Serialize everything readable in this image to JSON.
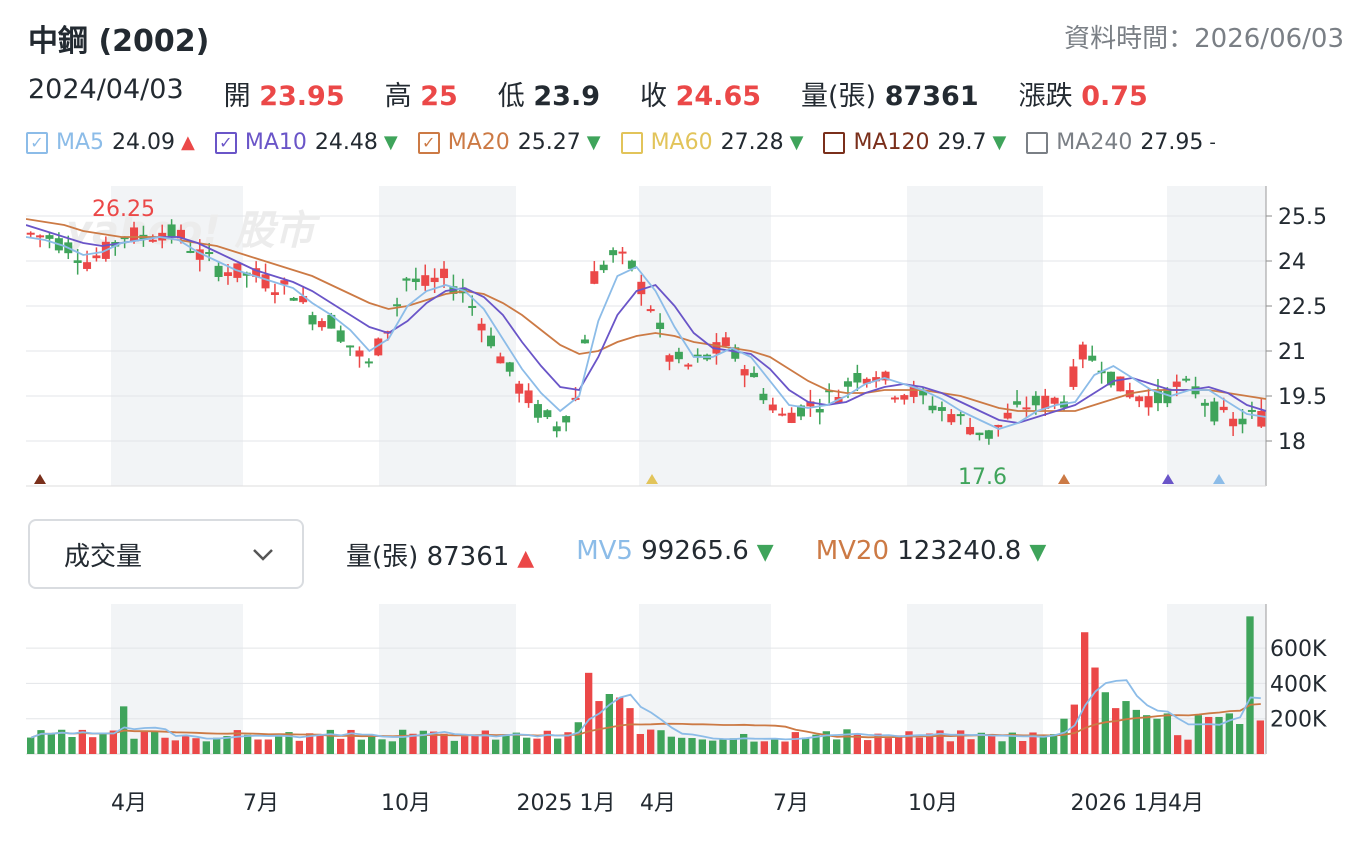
{
  "header": {
    "title": "中鋼 (2002)",
    "data_time": "資料時間：2026/06/03"
  },
  "quote": {
    "date": "2024/04/03",
    "open_label": "開",
    "open": "23.95",
    "high_label": "高",
    "high": "25",
    "low_label": "低",
    "low": "23.9",
    "close_label": "收",
    "close": "24.65",
    "volume_label": "量(張)",
    "volume": "87361",
    "change_label": "漲跌",
    "change": "0.75"
  },
  "ma_legend": [
    {
      "label": "MA5",
      "value": "24.09",
      "trend": "up",
      "color": "#8cbce8",
      "checked": true
    },
    {
      "label": "MA10",
      "value": "24.48",
      "trend": "down",
      "color": "#6a55c8",
      "checked": true
    },
    {
      "label": "MA20",
      "value": "25.27",
      "trend": "down",
      "color": "#cc7a45",
      "checked": true
    },
    {
      "label": "MA60",
      "value": "27.28",
      "trend": "down",
      "color": "#e2c45a",
      "checked": false
    },
    {
      "label": "MA120",
      "value": "29.7",
      "trend": "down",
      "color": "#7a2f1b",
      "checked": false
    },
    {
      "label": "MA240",
      "value": "27.95",
      "trend": "flat",
      "color": "#7a7f85",
      "checked": false
    }
  ],
  "indicator_select": {
    "value": "成交量"
  },
  "volume_legend": {
    "vol_label": "量(張)",
    "vol_value": "87361",
    "mv5_label": "MV5",
    "mv5_value": "99265.6",
    "mv20_label": "MV20",
    "mv20_value": "123240.8"
  },
  "colors": {
    "up": "#eb4848",
    "down": "#3fa45b",
    "ma5": "#8cbce8",
    "ma10": "#6a55c8",
    "ma20": "#cc7a45"
  },
  "chart_data": {
    "type": "candlestick",
    "price_axis": {
      "ticks": [
        "25.5",
        "24",
        "22.5",
        "21",
        "19.5",
        "18"
      ],
      "range": [
        16.5,
        26.5
      ]
    },
    "volume_axis": {
      "ticks": [
        "600K",
        "400K",
        "200K"
      ],
      "range": [
        0,
        850000
      ]
    },
    "x_labels": [
      "4月",
      "7月",
      "10月",
      "2025 1月",
      "4月",
      "7月",
      "10月",
      "2026 1月",
      "4月"
    ],
    "annotations": {
      "high": "26.25",
      "low": "17.6"
    },
    "watermark": "yahoo! 股市",
    "price_path": [
      24.9,
      24.8,
      24.5,
      24.0,
      24.3,
      24.9,
      24.8,
      25.0,
      24.8,
      24.2,
      23.8,
      23.6,
      23.5,
      23.2,
      23.0,
      22.2,
      22.0,
      21.2,
      20.5,
      21.8,
      23.4,
      23.2,
      23.4,
      23.0,
      22.0,
      20.8,
      19.8,
      19.0,
      18.5,
      19.4,
      23.5,
      24.2,
      23.8,
      22.5,
      20.8,
      20.5,
      20.8,
      21.2,
      20.5,
      19.6,
      18.8,
      19.1,
      19.3,
      19.6,
      20.2,
      20.3,
      19.7,
      19.6,
      19.2,
      18.9,
      18.5,
      18.2,
      18.8,
      19.2,
      19.3,
      19.4,
      20.9,
      20.6,
      19.8,
      19.5,
      19.4,
      19.8,
      19.7,
      19.0,
      18.6,
      18.8
    ],
    "ma5_path": [
      24.8,
      24.7,
      24.5,
      24.2,
      24.3,
      24.6,
      24.7,
      24.8,
      24.7,
      24.3,
      24.0,
      23.7,
      23.5,
      23.3,
      23.1,
      22.6,
      22.2,
      21.7,
      21.0,
      21.4,
      22.5,
      23.0,
      23.2,
      23.0,
      22.4,
      21.4,
      20.4,
      19.6,
      19.0,
      19.5,
      22.0,
      23.5,
      23.8,
      23.0,
      21.8,
      20.8,
      20.8,
      21.1,
      20.8,
      20.0,
      19.2,
      19.1,
      19.2,
      19.5,
      19.9,
      20.1,
      19.9,
      19.7,
      19.4,
      19.0,
      18.7,
      18.4,
      18.6,
      19.0,
      19.2,
      19.3,
      20.2,
      20.5,
      20.1,
      19.7,
      19.5,
      19.7,
      19.7,
      19.3,
      18.9,
      18.8
    ],
    "ma10_path": [
      25.2,
      25.0,
      24.8,
      24.6,
      24.5,
      24.6,
      24.7,
      24.8,
      24.8,
      24.6,
      24.3,
      24.0,
      23.7,
      23.5,
      23.3,
      23.0,
      22.6,
      22.2,
      21.8,
      21.6,
      22.0,
      22.6,
      23.0,
      23.1,
      22.8,
      22.2,
      21.3,
      20.5,
      19.8,
      19.7,
      20.8,
      22.2,
      23.0,
      23.2,
      22.5,
      21.6,
      21.1,
      21.0,
      20.9,
      20.4,
      19.7,
      19.3,
      19.2,
      19.3,
      19.6,
      19.8,
      19.9,
      19.8,
      19.6,
      19.3,
      19.0,
      18.7,
      18.6,
      18.8,
      19.0,
      19.2,
      19.6,
      20.0,
      20.1,
      19.9,
      19.7,
      19.7,
      19.8,
      19.6,
      19.2,
      19.0
    ],
    "ma20_path": [
      25.4,
      25.3,
      25.2,
      25.0,
      24.9,
      24.8,
      24.8,
      24.8,
      24.7,
      24.6,
      24.5,
      24.3,
      24.1,
      23.9,
      23.7,
      23.5,
      23.2,
      22.9,
      22.6,
      22.4,
      22.5,
      22.7,
      22.9,
      23.0,
      22.9,
      22.6,
      22.2,
      21.7,
      21.2,
      20.9,
      21.0,
      21.3,
      21.5,
      21.6,
      21.5,
      21.3,
      21.2,
      21.1,
      21.0,
      20.8,
      20.4,
      20.0,
      19.7,
      19.6,
      19.6,
      19.7,
      19.7,
      19.7,
      19.6,
      19.5,
      19.3,
      19.1,
      19.0,
      19.0,
      19.0,
      19.0,
      19.2,
      19.4,
      19.6,
      19.7,
      19.7,
      19.7,
      19.7,
      19.6,
      19.5,
      19.4
    ],
    "volume_series": {
      "mv5": "99265.6",
      "mv20": "123240.8",
      "current": "87361"
    }
  }
}
